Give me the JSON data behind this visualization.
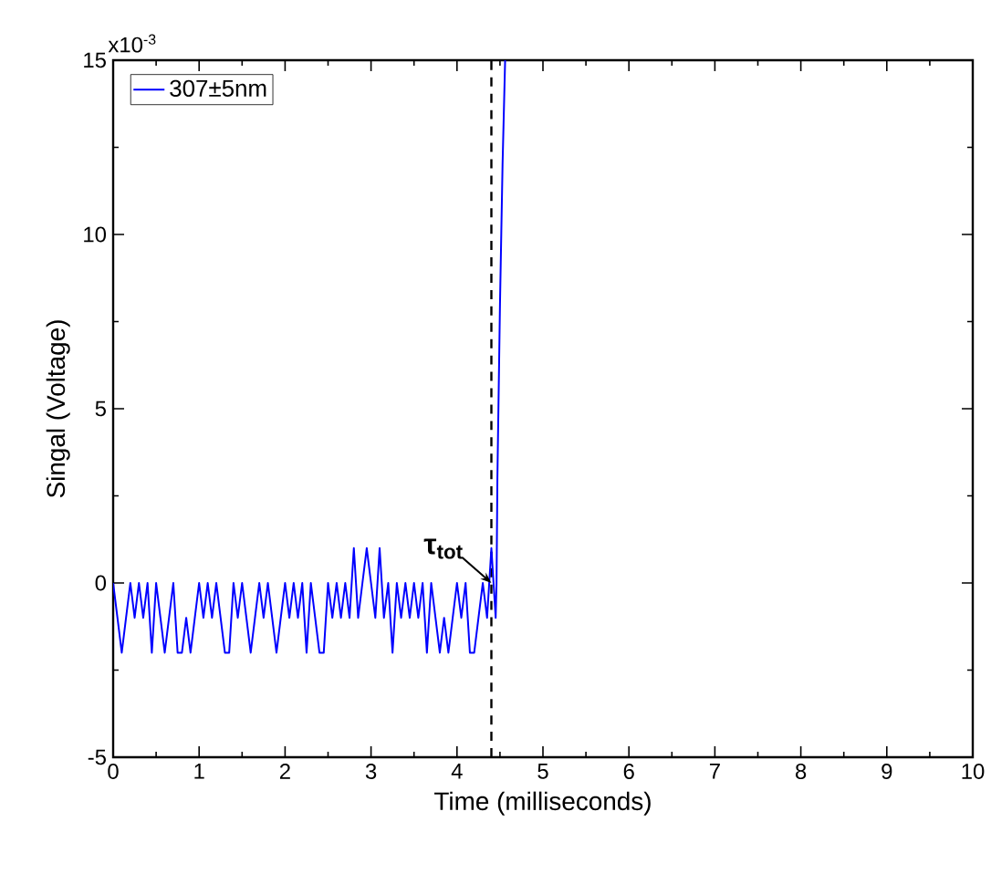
{
  "chart_data": {
    "type": "line",
    "xlabel": "Time (milliseconds)",
    "ylabel": "Singal (Voltage)",
    "xlim": [
      0,
      10
    ],
    "ylim": [
      -5,
      15
    ],
    "xticks": [
      0,
      1,
      2,
      3,
      4,
      5,
      6,
      7,
      8,
      9,
      10
    ],
    "yticks": [
      -5,
      0,
      5,
      10,
      15
    ],
    "grid": false,
    "legend": "top left",
    "line_style": "solid",
    "annotations": [
      "x10$^{-3}$",
      {
        "text": "τ$_{tot}$",
        "x": 4.4,
        "y": 0
      }
    ],
    "ref_lines": [
      {
        "axis": "x",
        "value": 4.4,
        "color": "#000000",
        "line_style": "dashed"
      }
    ],
    "series": [
      {
        "name": "307±5nm",
        "color": "#0000ff",
        "x": [
          0,
          0.05,
          0.1,
          0.15,
          0.2,
          0.25,
          0.3,
          0.35,
          0.4,
          0.45,
          0.5,
          0.55,
          0.6,
          0.65,
          0.7,
          0.75,
          0.8,
          0.85,
          0.9,
          0.95,
          1.0,
          1.05,
          1.1,
          1.15,
          1.2,
          1.25,
          1.3,
          1.35,
          1.4,
          1.45,
          1.5,
          1.55,
          1.6,
          1.65,
          1.7,
          1.75,
          1.8,
          1.85,
          1.9,
          1.95,
          2.0,
          2.05,
          2.1,
          2.15,
          2.2,
          2.25,
          2.3,
          2.35,
          2.4,
          2.45,
          2.5,
          2.55,
          2.6,
          2.65,
          2.7,
          2.75,
          2.8,
          2.85,
          2.9,
          2.95,
          3.0,
          3.05,
          3.1,
          3.15,
          3.2,
          3.25,
          3.3,
          3.35,
          3.4,
          3.45,
          3.5,
          3.55,
          3.6,
          3.65,
          3.7,
          3.75,
          3.8,
          3.85,
          3.9,
          3.95,
          4.0,
          4.05,
          4.1,
          4.15,
          4.2,
          4.25,
          4.3,
          4.35,
          4.4,
          4.45,
          4.46,
          4.47,
          4.5,
          4.53,
          4.56
        ],
        "values": [
          0,
          -1,
          -2,
          -1,
          0,
          -1,
          0,
          -1,
          0,
          -2,
          0,
          -1,
          -2,
          -1,
          0,
          -2,
          -2,
          -1,
          -2,
          -1,
          0,
          -1,
          0,
          -1,
          0,
          -1,
          -2,
          -2,
          0,
          -1,
          0,
          -1,
          -2,
          -1,
          0,
          -1,
          0,
          -1,
          -2,
          -1,
          0,
          -1,
          0,
          -1,
          0,
          -2,
          0,
          -1,
          -2,
          -2,
          0,
          -1,
          0,
          -1,
          0,
          -1,
          1,
          -1,
          0,
          1,
          0,
          -1,
          1,
          -1,
          0,
          -2,
          0,
          -1,
          0,
          -1,
          0,
          -1,
          0,
          -2,
          0,
          -1,
          -2,
          -1,
          -2,
          -1,
          0,
          -1,
          0,
          -2,
          -2,
          -1,
          0,
          -1,
          1,
          -1,
          0,
          3,
          8,
          12,
          15
        ]
      }
    ]
  }
}
